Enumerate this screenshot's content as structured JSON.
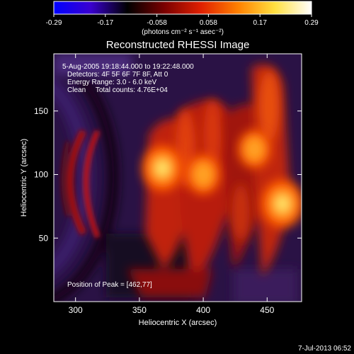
{
  "chart_data": {
    "type": "heatmap",
    "title": "Reconstructed RHESSI Image",
    "xlabel": "Heliocentric X (arcsec)",
    "ylabel": "Heliocentric Y (arcsec)",
    "xlim": [
      283,
      477
    ],
    "ylim": [
      0,
      195
    ],
    "x_ticks": [
      300,
      350,
      400,
      450
    ],
    "y_ticks": [
      50,
      100,
      150
    ],
    "colorbar": {
      "label": "(photons cm⁻² s⁻¹ asec⁻²)",
      "range": [
        -0.29,
        0.29
      ],
      "ticks": [
        "-0.29",
        "-0.17",
        "-0.058",
        "0.058",
        "0.17",
        "0.29"
      ],
      "colors": [
        "#0000ff",
        "#3a00d0",
        "#000000",
        "#7a0000",
        "#e02000",
        "#ff8000",
        "#ffe040",
        "#ffffff"
      ]
    },
    "info_lines": [
      "5-Aug-2005 19:18:44.000 to 19:22:48.000",
      "Detectors: 4F 5F 6F 7F 8F, Att 0",
      "Energy Range: 3.0 - 6.0 keV",
      "Clean     Total counts: 4.76E+04"
    ],
    "peak_label": "Position of Peak = [462,77]",
    "peak": [
      462,
      77
    ],
    "sources": [
      {
        "x": 462,
        "y": 77,
        "intensity": 0.29
      },
      {
        "x": 368,
        "y": 105,
        "intensity": 0.26
      },
      {
        "x": 400,
        "y": 100,
        "intensity": 0.17
      },
      {
        "x": 440,
        "y": 120,
        "intensity": 0.15
      }
    ]
  },
  "footer": {
    "timestamp": "7-Jul-2013 06:52"
  }
}
